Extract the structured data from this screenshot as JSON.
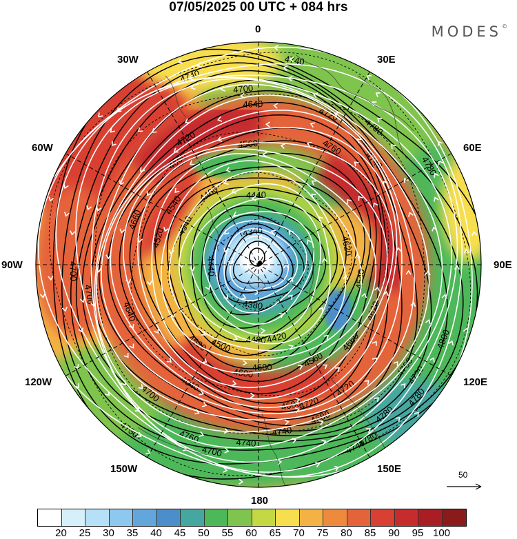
{
  "title": "07/05/2025  00 UTC  + 084 hrs",
  "brand": "MODES",
  "brand_mark": "©",
  "longitude_labels": {
    "n": "0",
    "w30": "30W",
    "e30": "30E",
    "w60": "60W",
    "e60": "60E",
    "w90": "90W",
    "e90": "90E",
    "w120": "120W",
    "e120": "120E",
    "w150": "150W",
    "e150": "150E",
    "s": "180"
  },
  "wind_scale": {
    "label": "50"
  },
  "colorbar": {
    "colors": [
      "#ffffff",
      "#d5effb",
      "#b5e0f7",
      "#8ec8ee",
      "#62a6dc",
      "#4b8ec9",
      "#46a7a0",
      "#4db85a",
      "#7fc44e",
      "#c3d843",
      "#f7de4f",
      "#f3b244",
      "#ee8a3c",
      "#e5633a",
      "#d93f32",
      "#c62c2d",
      "#a81e22",
      "#8b1a1a"
    ],
    "tick_labels": [
      "20",
      "25",
      "30",
      "35",
      "40",
      "45",
      "50",
      "55",
      "60",
      "65",
      "70",
      "75",
      "80",
      "85",
      "90",
      "95",
      "100"
    ]
  },
  "contour_labels": [
    "4740",
    "4740",
    "4700",
    "4640",
    "4720",
    "4660",
    "4560",
    "4760",
    "4780",
    "4720",
    "4740",
    "4780",
    "4760",
    "4740",
    "4720",
    "4660",
    "4540",
    "4440",
    "4460",
    "4340",
    "4540",
    "4520",
    "4440",
    "4620",
    "4700",
    "4700",
    "4640",
    "4380",
    "4420",
    "4540",
    "4620",
    "4560",
    "4660",
    "4520",
    "4500",
    "4480",
    "4720",
    "4780",
    "4700",
    "4640",
    "4600",
    "4580",
    "4680",
    "4680",
    "4800",
    "4720",
    "4700",
    "4760",
    "4740",
    "4740",
    "4780",
    "4780",
    "4730"
  ],
  "legend_colors_meaning": "wind speed shading",
  "accent_colors": {
    "contour": "#000000",
    "streamline": "#ffffff",
    "coast": "#333333"
  }
}
